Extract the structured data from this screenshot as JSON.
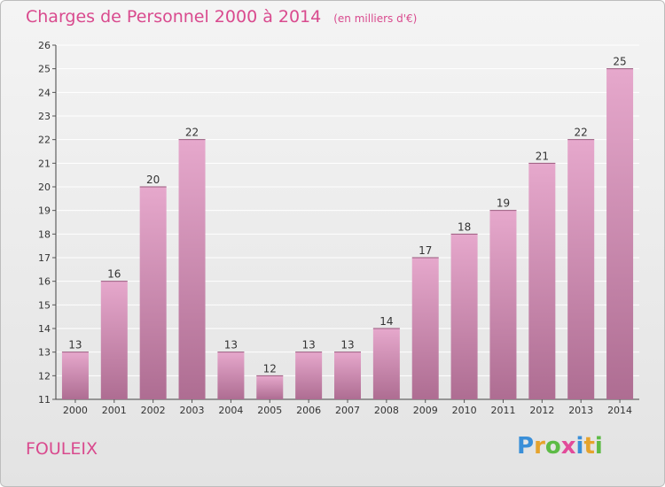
{
  "header": {
    "title": "Charges de Personnel 2000 à 2014",
    "subtitle": "(en milliers d'€)"
  },
  "footer": {
    "commune": "FOULEIX",
    "logo_letters": [
      "P",
      "r",
      "o",
      "x",
      "i",
      "t",
      "i"
    ]
  },
  "colors": {
    "bar_top": "#e6a8cc",
    "bar_bottom": "#ae6d92",
    "title": "#d94a8e",
    "grid": "#ffffff"
  },
  "chart_data": {
    "type": "bar",
    "categories": [
      "2000",
      "2001",
      "2002",
      "2003",
      "2004",
      "2005",
      "2006",
      "2007",
      "2008",
      "2009",
      "2010",
      "2011",
      "2012",
      "2013",
      "2014"
    ],
    "values": [
      13,
      16,
      20,
      22,
      13,
      12,
      13,
      13,
      14,
      17,
      18,
      19,
      21,
      22,
      25
    ],
    "ylim": [
      11,
      26
    ],
    "yticks": [
      11,
      12,
      13,
      14,
      15,
      16,
      17,
      18,
      19,
      20,
      21,
      22,
      23,
      24,
      25,
      26
    ],
    "grid": true
  }
}
